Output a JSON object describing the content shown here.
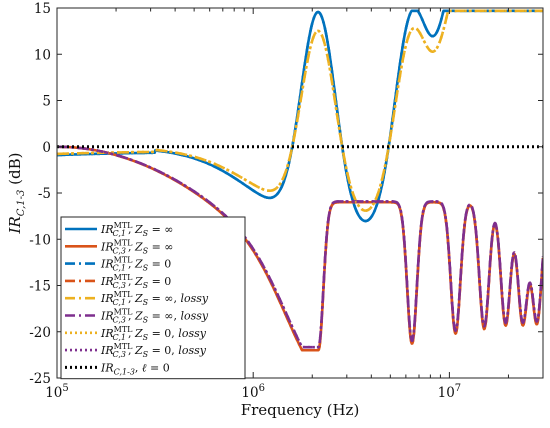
{
  "chart_data": {
    "type": "line",
    "xlabel": "Frequency (Hz)",
    "ylabel": "IR_{C,1-3} (dB)",
    "xscale": "log",
    "xlim": [
      100000,
      30000000
    ],
    "ylim": [
      -25,
      15
    ],
    "grid": false,
    "legend_position": "lower-left",
    "xticks": [
      {
        "value": 100000,
        "base": "10",
        "exp": "5"
      },
      {
        "value": 1000000,
        "base": "10",
        "exp": "6"
      },
      {
        "value": 10000000,
        "base": "10",
        "exp": "7"
      }
    ],
    "yticks": [
      15,
      10,
      5,
      0,
      -5,
      -10,
      -15,
      -20,
      -25
    ],
    "resonances": {
      "upper_peaks": [
        2150000,
        6450000,
        10750000,
        15050000,
        19350000,
        23650000,
        27950000
      ],
      "upper_peak_values_dB": [
        13.5,
        13.7,
        13.7,
        13.7,
        13.7,
        13.7,
        13.7
      ],
      "lower_dips_dB": [
        -22,
        -21.3,
        -20.2,
        -19.7,
        -19.3,
        -19.1,
        -19
      ]
    },
    "series": [
      {
        "name": "IR^MTL_C,1, Z_S = ∞",
        "color": "#0072BD",
        "style": "solid",
        "group": "upper_exact"
      },
      {
        "name": "IR^MTL_C,3, Z_S = ∞",
        "color": "#D95319",
        "style": "solid",
        "group": "lower_exact"
      },
      {
        "name": "IR^MTL_C,1, Z_S = 0",
        "color": "#0072BD",
        "style": "dashdot",
        "group": "upper_exact"
      },
      {
        "name": "IR^MTL_C,3, Z_S = 0",
        "color": "#D95319",
        "style": "dashdot",
        "group": "lower_exact"
      },
      {
        "name": "IR^MTL_C,1, Z_S = ∞, lossy",
        "color": "#EDB120",
        "style": "dashdot",
        "group": "upper_lossy"
      },
      {
        "name": "IR^MTL_C,3, Z_S = ∞, lossy",
        "color": "#7E2F8E",
        "style": "dashdot",
        "group": "lower_lossy"
      },
      {
        "name": "IR^MTL_C,1, Z_S = 0, lossy",
        "color": "#EDB120",
        "style": "dotted",
        "group": "upper_lossy"
      },
      {
        "name": "IR^MTL_C,3, Z_S = 0, lossy",
        "color": "#7E2F8E",
        "style": "dotted",
        "group": "lower_lossy"
      },
      {
        "name": "IR_C,1-3, ℓ = 0",
        "color": "#000000",
        "style": "dotted",
        "group": "zero",
        "values": [
          0,
          0
        ]
      }
    ],
    "legend": [
      {
        "kind": "mtl",
        "sub": "C,1",
        "cond": "Z",
        "condsub": "S",
        "val": " = ∞",
        "extra": ""
      },
      {
        "kind": "mtl",
        "sub": "C,3",
        "cond": "Z",
        "condsub": "S",
        "val": " = ∞",
        "extra": ""
      },
      {
        "kind": "mtl",
        "sub": "C,1",
        "cond": "Z",
        "condsub": "S",
        "val": " = 0",
        "extra": ""
      },
      {
        "kind": "mtl",
        "sub": "C,3",
        "cond": "Z",
        "condsub": "S",
        "val": " = 0",
        "extra": ""
      },
      {
        "kind": "mtl",
        "sub": "C,1",
        "cond": "Z",
        "condsub": "S",
        "val": " = ∞,",
        "extra": "lossy"
      },
      {
        "kind": "mtl",
        "sub": "C,3",
        "cond": "Z",
        "condsub": "S",
        "val": " = ∞,",
        "extra": "lossy"
      },
      {
        "kind": "mtl",
        "sub": "C,1",
        "cond": "Z",
        "condsub": "S",
        "val": " = 0,",
        "extra": "lossy"
      },
      {
        "kind": "mtl",
        "sub": "C,3",
        "cond": "Z",
        "condsub": "S",
        "val": " = 0,",
        "extra": "lossy"
      },
      {
        "kind": "plain",
        "sub": "C,1-3",
        "cond": "ℓ",
        "condsub": "",
        "val": " = 0",
        "extra": ""
      }
    ],
    "ir_symbol": "IR",
    "mtl_sup": "MTL",
    "ylabel_main": "IR",
    "ylabel_sub": "C,1-3",
    "ylabel_unit": " (dB)"
  }
}
